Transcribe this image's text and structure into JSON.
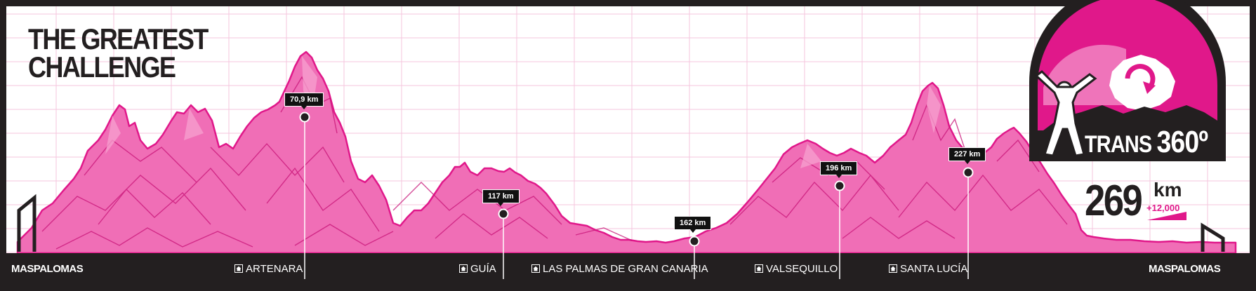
{
  "header": {
    "title_line_1": "THE GREATEST",
    "title_line_2": "CHALLENGE"
  },
  "logo": {
    "name": "TRANS",
    "number": "360º",
    "icon": "runner-island-logo-icon"
  },
  "totals": {
    "distance_value": "269",
    "distance_unit": "km",
    "elevation_gain": "+12,000",
    "gain_icon": "ramp-icon"
  },
  "markers": [
    {
      "label": "70,9 km",
      "km": 70.9
    },
    {
      "label": "117 km",
      "km": 117
    },
    {
      "label": "162 km",
      "km": 162
    },
    {
      "label": "196 km",
      "km": 196
    },
    {
      "label": "227 km",
      "km": 227
    }
  ],
  "towns": [
    {
      "name": "MASPALOMAS",
      "icon": ""
    },
    {
      "name": "ARTENARA",
      "icon": "house-icon"
    },
    {
      "name": "GUÍA",
      "icon": "house-icon"
    },
    {
      "name": "LAS PALMAS DE GRAN CANARIA",
      "icon": "house-icon"
    },
    {
      "name": "VALSEQUILLO",
      "icon": "house-icon"
    },
    {
      "name": "SANTA LUCÍA",
      "icon": "house-icon"
    },
    {
      "name": "MASPALOMAS",
      "icon": ""
    }
  ],
  "colors": {
    "profile_fill": "#f06eb6",
    "profile_dark": "#e0188a",
    "profile_light": "#f7a1cf",
    "bar": "#231f20",
    "grid": "#f5c6dd",
    "background": "#ffffff"
  }
}
